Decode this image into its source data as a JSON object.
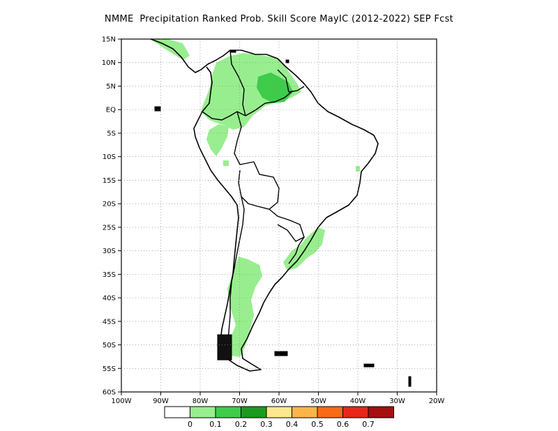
{
  "title": "NMME  Precipitation Ranked Prob. Skill Score MayIC (2012-2022) SEP Fcst",
  "map": {
    "lat_labels": [
      "15N",
      "10N",
      "5N",
      "EQ",
      "5S",
      "10S",
      "15S",
      "20S",
      "25S",
      "30S",
      "35S",
      "40S",
      "45S",
      "50S",
      "55S",
      "60S"
    ],
    "lon_labels": [
      "100W",
      "90W",
      "80W",
      "70W",
      "60W",
      "50W",
      "40W",
      "30W",
      "20W"
    ],
    "lat_range": [
      -60,
      15
    ],
    "lon_range": [
      -100,
      -20
    ],
    "grid_style": "dotted"
  },
  "colorbar": {
    "labels": [
      "0",
      "0.1",
      "0.2",
      "0.3",
      "0.4",
      "0.5",
      "0.6",
      "0.7"
    ],
    "colors": [
      "#ffffff",
      "#98ee8e",
      "#3fcc4a",
      "#1a9b20",
      "#fde88d",
      "#fbb54a",
      "#f86a16",
      "#e8271b",
      "#a50f0f"
    ]
  },
  "skill_regions": [
    {
      "level": "0.1-0.2",
      "color": "#98ee8e",
      "location": "northern South America, Colombia-Venezuela-Guianas"
    },
    {
      "level": "0.2-0.3",
      "color": "#3fcc4a",
      "location": "Venezuela-Guyana"
    },
    {
      "level": "0.1-0.2",
      "color": "#98ee8e",
      "location": "Peru west coast"
    },
    {
      "level": "0.1-0.2",
      "color": "#98ee8e",
      "location": "southern Brazil / Uruguay"
    },
    {
      "level": "0.1-0.2",
      "color": "#98ee8e",
      "location": "central-southern Argentina / Patagonia"
    }
  ]
}
